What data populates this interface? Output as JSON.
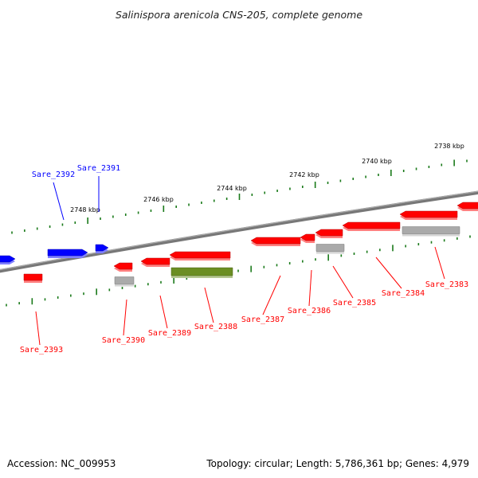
{
  "title": "Salinispora arenicola CNS-205, complete genome",
  "accession": "Accession: NC_009953",
  "topology": "Topology: circular; Length: 5,786,361 bp; Genes: 4,979",
  "colors": {
    "forward": "#ff0000",
    "reverse": "#0000ff",
    "grey": "#aaaaaa",
    "olive": "#6b8e23",
    "backbone": "#777777",
    "tick": "#1a7a1a"
  },
  "scale_labels": [
    "2738 kbp",
    "2740 kbp",
    "2742 kbp",
    "2744 kbp",
    "2746 kbp",
    "2748 kbp"
  ],
  "gene_labels": [
    "Sare_2383",
    "Sare_2384",
    "Sare_2385",
    "Sare_2386",
    "Sare_2387",
    "Sare_2388",
    "Sare_2389",
    "Sare_2390",
    "Sare_2391",
    "Sare_2392",
    "Sare_2393"
  ]
}
